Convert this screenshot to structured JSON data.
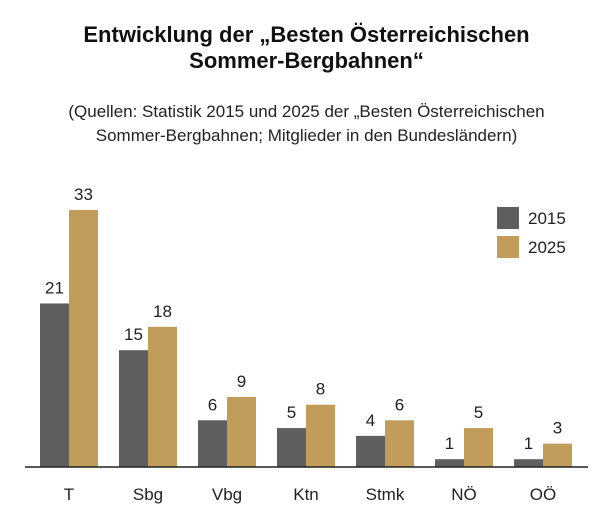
{
  "header": {
    "title_line1": "Entwicklung der „Besten Österreichischen",
    "title_line2": "Sommer-Bergbahnen“",
    "subtitle_line1": "(Quellen: Statistik 2015 und 2025 der „Besten Österreichischen",
    "subtitle_line2": "Sommer-Bergbahnen; Mitglieder in den Bundesländern)"
  },
  "colors": {
    "series_2015": "#5f5f5f",
    "series_2025": "#c29c5a",
    "axis": "#222222",
    "text": "#222222"
  },
  "chart_data": {
    "type": "bar",
    "title": "Entwicklung der „Besten Österreichischen Sommer-Bergbahnen“",
    "subtitle": "(Quellen: Statistik 2015 und 2025 der „Besten Österreichischen Sommer-Bergbahnen; Mitglieder in den Bundesländern)",
    "categories": [
      "T",
      "Sbg",
      "Vbg",
      "Ktn",
      "Stmk",
      "NÖ",
      "OÖ"
    ],
    "series": [
      {
        "name": "2015",
        "values": [
          21,
          15,
          6,
          5,
          4,
          1,
          1
        ]
      },
      {
        "name": "2025",
        "values": [
          33,
          18,
          9,
          8,
          6,
          5,
          3
        ]
      }
    ],
    "xlabel": "",
    "ylabel": "",
    "ylim": [
      0,
      33
    ],
    "grid": false,
    "legend": "top-right",
    "data_labels": true
  }
}
